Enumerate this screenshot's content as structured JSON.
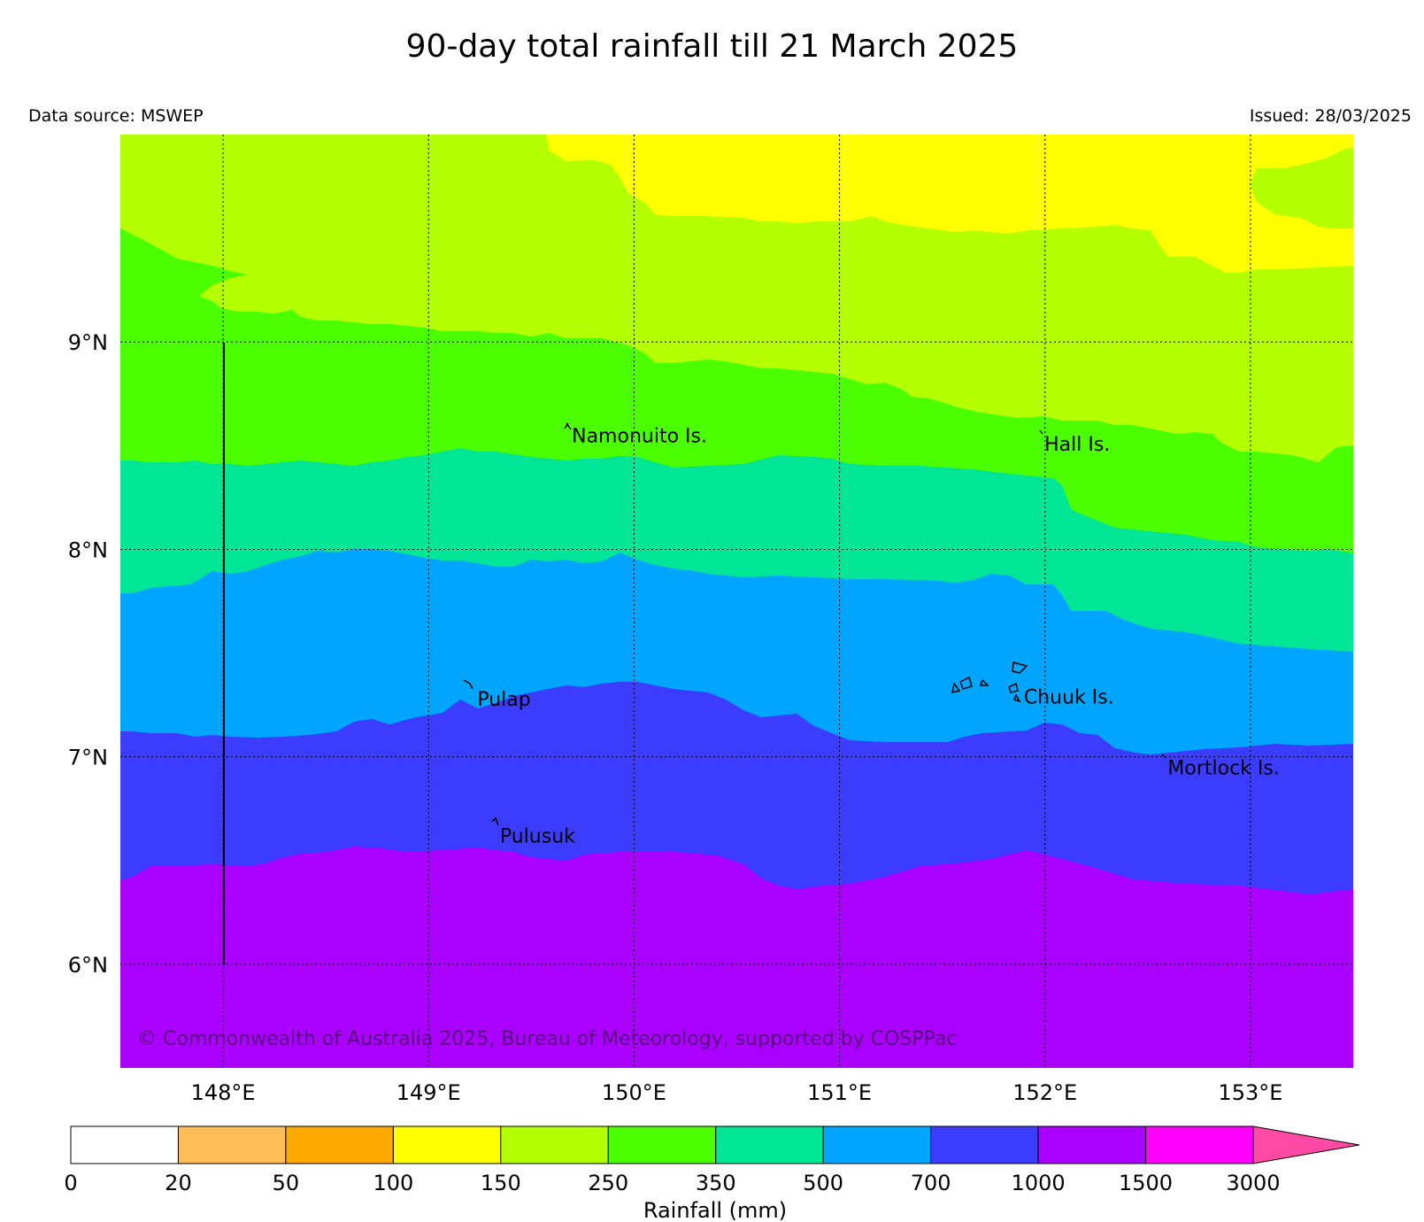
{
  "title": "90-day total rainfall till 21 March 2025",
  "data_source": "Data source: MSWEP",
  "issued": "Issued: 28/03/2025",
  "copyright": "© Commonwealth of Australia 2025, Bureau of Meteorology, supported by COSPPac",
  "map": {
    "lon_range": [
      147.5,
      153.5
    ],
    "lat_range": [
      5.5,
      10.0
    ],
    "lat_ticks": [
      {
        "value": 6,
        "label": "6°N"
      },
      {
        "value": 7,
        "label": "7°N"
      },
      {
        "value": 8,
        "label": "8°N"
      },
      {
        "value": 9,
        "label": "9°N"
      }
    ],
    "lon_ticks": [
      {
        "value": 148,
        "label": "148°E"
      },
      {
        "value": 149,
        "label": "149°E"
      },
      {
        "value": 150,
        "label": "150°E"
      },
      {
        "value": 151,
        "label": "151°E"
      },
      {
        "value": 152,
        "label": "152°E"
      },
      {
        "value": 153,
        "label": "153°E"
      }
    ],
    "gridlines": true,
    "places": [
      {
        "name": "Namonuito Is.",
        "lon": 149.68,
        "lat": 8.55
      },
      {
        "name": "Hall Is.",
        "lon": 151.98,
        "lat": 8.51
      },
      {
        "name": "Pulap",
        "lon": 149.22,
        "lat": 7.28
      },
      {
        "name": "Chuuk Is.",
        "lon": 151.88,
        "lat": 7.29
      },
      {
        "name": "Mortlock Is.",
        "lon": 152.58,
        "lat": 6.95
      },
      {
        "name": "Pulusuk",
        "lon": 149.33,
        "lat": 6.62
      }
    ]
  },
  "colorbar": {
    "title": "Rainfall (mm)",
    "ticks": [
      "0",
      "20",
      "50",
      "100",
      "150",
      "250",
      "350",
      "500",
      "700",
      "1000",
      "1500",
      "3000"
    ],
    "colors": [
      "#ffffff",
      "#ffbe5a",
      "#ffaa00",
      "#ffff00",
      "#b4ff00",
      "#4bff00",
      "#00e696",
      "#00a5ff",
      "#3c3cff",
      "#aa00ff",
      "#ff00ff"
    ],
    "extend_color": "#ff4aa5"
  }
}
